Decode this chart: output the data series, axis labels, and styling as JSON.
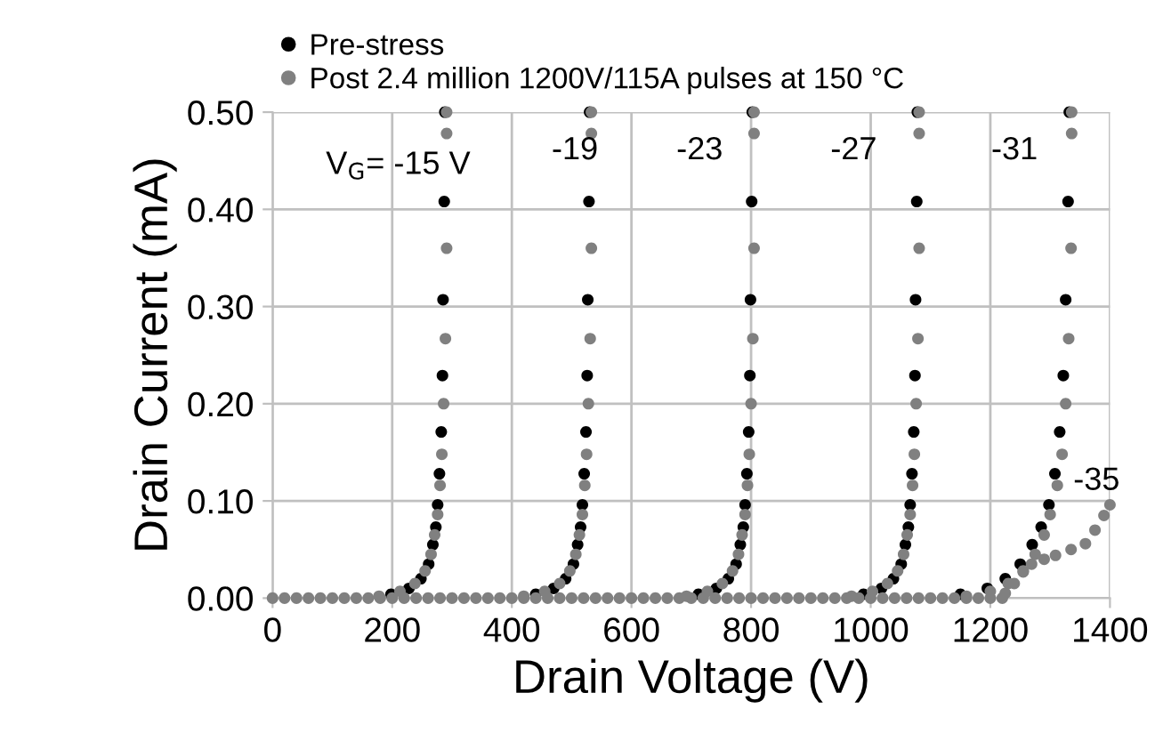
{
  "chart_data": {
    "type": "scatter",
    "xlabel": "Drain Voltage (V)",
    "ylabel": "Drain Current (mA)",
    "xlim": [
      0,
      1400
    ],
    "xticks": [
      0,
      200,
      400,
      600,
      800,
      1000,
      1200,
      1400
    ],
    "ylim": [
      0,
      0.5
    ],
    "yticks": [
      {
        "value": 0,
        "label": "0.00"
      },
      {
        "value": 0.1,
        "label": "0.10"
      },
      {
        "value": 0.2,
        "label": "0.20"
      },
      {
        "value": 0.3,
        "label": "0.30"
      },
      {
        "value": 0.4,
        "label": "0.40"
      },
      {
        "value": 0.5,
        "label": "0.50"
      }
    ],
    "grid": true,
    "legend": "top left",
    "marker": "circle",
    "annotations": [
      "V$_{G}$= -15 V",
      "-19",
      "-23",
      "-27",
      "-31",
      "-35"
    ],
    "series": [
      {
        "name": "Pre-stress",
        "color": "#000000",
        "x": [
          288,
          287,
          285,
          284,
          282,
          279,
          276,
          273,
          268,
          261,
          248,
          228,
          198,
          530,
          529,
          527,
          526,
          524,
          521,
          518,
          515,
          510,
          503,
          490,
          470,
          440,
          802,
          801,
          799,
          798,
          796,
          793,
          790,
          787,
          782,
          775,
          762,
          742,
          712,
          1078,
          1077,
          1075,
          1074,
          1072,
          1069,
          1066,
          1063,
          1058,
          1051,
          1038,
          1018,
          988,
          1332,
          1330,
          1326,
          1322,
          1316,
          1308,
          1298,
          1285,
          1270,
          1250,
          1225,
          1195,
          1150
        ],
        "values": [
          0.5,
          0.408,
          0.307,
          0.229,
          0.171,
          0.128,
          0.096,
          0.073,
          0.055,
          0.035,
          0.02,
          0.01,
          0.004,
          0.5,
          0.408,
          0.307,
          0.229,
          0.171,
          0.128,
          0.096,
          0.073,
          0.055,
          0.035,
          0.02,
          0.01,
          0.004,
          0.5,
          0.408,
          0.307,
          0.229,
          0.171,
          0.128,
          0.096,
          0.073,
          0.055,
          0.035,
          0.02,
          0.01,
          0.004,
          0.5,
          0.408,
          0.307,
          0.229,
          0.171,
          0.128,
          0.096,
          0.073,
          0.055,
          0.035,
          0.02,
          0.01,
          0.004,
          0.5,
          0.408,
          0.307,
          0.229,
          0.171,
          0.128,
          0.096,
          0.073,
          0.055,
          0.035,
          0.02,
          0.01,
          0.004
        ]
      },
      {
        "name": "Post 2.4 million 1200V/115A pulses at 150 °C",
        "color": "#808080",
        "x": [
          0,
          20,
          40,
          60,
          80,
          100,
          120,
          140,
          160,
          180,
          200,
          220,
          240,
          260,
          280,
          300,
          320,
          340,
          360,
          380,
          400,
          420,
          440,
          460,
          480,
          500,
          520,
          540,
          560,
          580,
          600,
          620,
          640,
          660,
          680,
          700,
          720,
          740,
          760,
          780,
          800,
          820,
          840,
          860,
          880,
          900,
          920,
          940,
          960,
          980,
          1000,
          1020,
          1040,
          1060,
          1080,
          1100,
          1120,
          1140,
          1160,
          1180,
          1200,
          1220,
          291,
          291,
          291,
          289,
          286,
          283,
          280,
          276,
          271,
          265,
          255,
          238,
          213,
          178,
          533,
          533,
          533,
          531,
          528,
          525,
          522,
          518,
          513,
          507,
          497,
          480,
          455,
          420,
          805,
          805,
          805,
          803,
          800,
          797,
          794,
          790,
          785,
          779,
          769,
          752,
          727,
          692,
          1081,
          1081,
          1081,
          1079,
          1076,
          1073,
          1070,
          1066,
          1061,
          1055,
          1045,
          1028,
          1003,
          968,
          1336,
          1336,
          1335,
          1331,
          1326,
          1320,
          1312,
          1300,
          1290,
          1275,
          1255,
          1230,
          1200,
          1160,
          1225,
          1240,
          1255,
          1269,
          1290,
          1309,
          1335,
          1359,
          1375,
          1390,
          1400
        ],
        "values": [
          0,
          0,
          0,
          0,
          0,
          0,
          0,
          0,
          0,
          0,
          0,
          0,
          0,
          0,
          0,
          0,
          0,
          0,
          0,
          0,
          0,
          0,
          0,
          0,
          0,
          0,
          0,
          0,
          0,
          0,
          0,
          0,
          0,
          0,
          0,
          0,
          0,
          0,
          0,
          0,
          0,
          0,
          0,
          0,
          0,
          0,
          0,
          0,
          0,
          0,
          0,
          0,
          0,
          0,
          0,
          0,
          0,
          0,
          0,
          0,
          0,
          0,
          0.5,
          0.478,
          0.36,
          0.267,
          0.2,
          0.148,
          0.116,
          0.086,
          0.065,
          0.045,
          0.028,
          0.015,
          0.007,
          0.002,
          0.5,
          0.478,
          0.36,
          0.267,
          0.2,
          0.148,
          0.116,
          0.086,
          0.065,
          0.045,
          0.028,
          0.015,
          0.007,
          0.002,
          0.5,
          0.478,
          0.36,
          0.267,
          0.2,
          0.148,
          0.116,
          0.086,
          0.065,
          0.045,
          0.028,
          0.015,
          0.007,
          0.002,
          0.5,
          0.478,
          0.36,
          0.267,
          0.2,
          0.148,
          0.116,
          0.086,
          0.065,
          0.045,
          0.028,
          0.015,
          0.007,
          0.002,
          0.5,
          0.478,
          0.36,
          0.267,
          0.2,
          0.148,
          0.116,
          0.086,
          0.065,
          0.045,
          0.028,
          0.015,
          0.007,
          0.002,
          0.005,
          0.015,
          0.027,
          0.035,
          0.04,
          0.044,
          0.05,
          0.056,
          0.07,
          0.085,
          0.096
        ]
      }
    ]
  }
}
